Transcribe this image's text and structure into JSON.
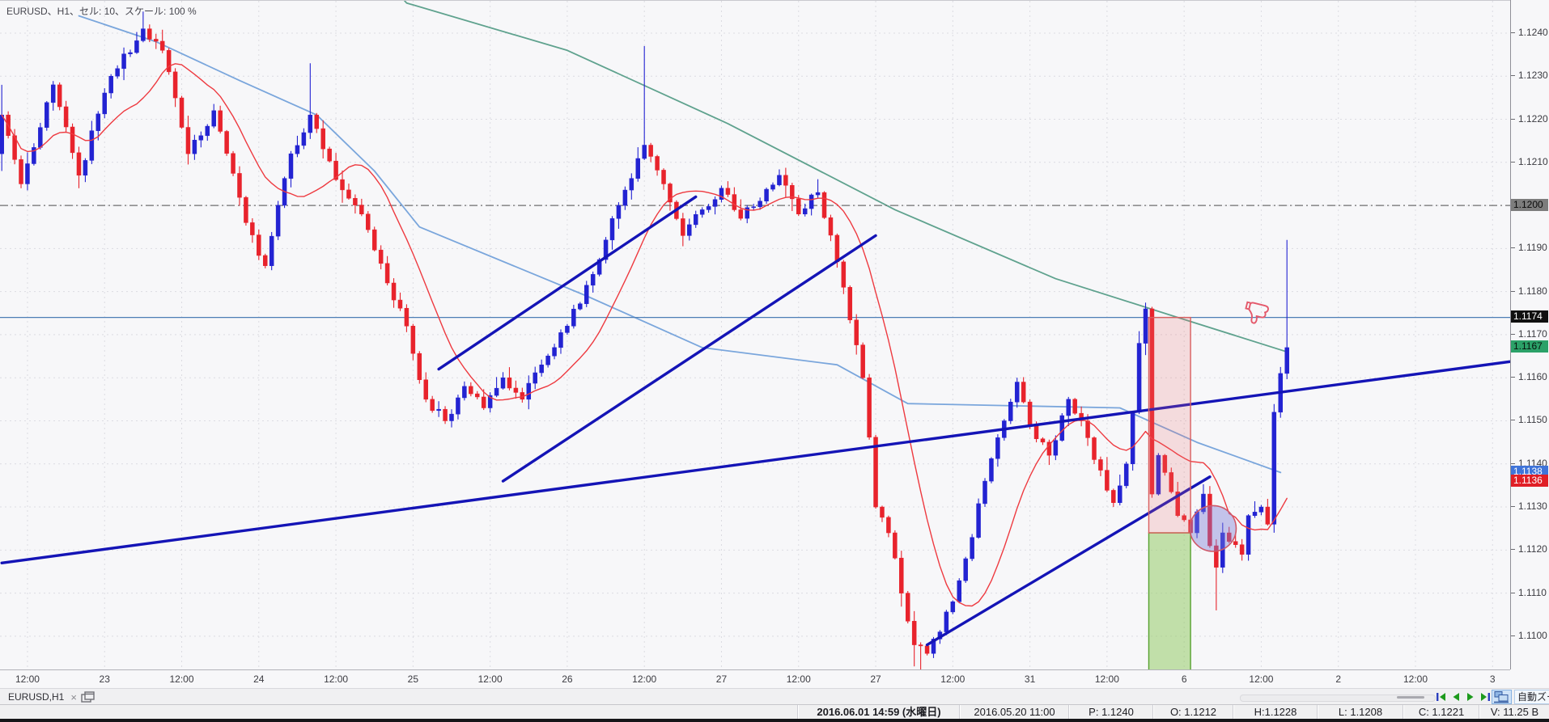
{
  "title_overlay": "EURUSD、H1、セル: 10、スケール: 100 %",
  "colors": {
    "bull": "#2323d2",
    "bear": "#e8232c",
    "ma_fast": "#ee3a40",
    "ma_mid": "#7aa6dc",
    "ma_slow": "#5fa28e",
    "trendline": "#1414b6",
    "hline": "#4d7eb5",
    "dashline": "#6f6f6f",
    "grid": "#dcdce2",
    "bg": "#f7f7f9",
    "axis_text": "#3b3b41",
    "rect_pink_fill": "rgba(235,110,110,0.20)",
    "rect_pink_stroke": "#d95f5f",
    "rect_green_fill": "rgba(140,200,90,0.50)",
    "rect_green_stroke": "#57a22f",
    "ellipse_fill": "rgba(125,125,215,0.42)",
    "ellipse_stroke": "#cf5868",
    "thumb": "#e4596b"
  },
  "price_axis": {
    "top": 1.12475,
    "bottom": 1.10921,
    "ticks": [
      "1.1240",
      "1.1230",
      "1.1220",
      "1.1210",
      "1.1200",
      "1.1190",
      "1.1180",
      "1.1170",
      "1.1160",
      "1.1150",
      "1.1140",
      "1.1130",
      "1.1120",
      "1.1110",
      "1.1100"
    ],
    "chips": [
      {
        "price": 1.12,
        "text": "1.1200",
        "bg": "#7d7d7d",
        "fg": "#0a0a0a"
      },
      {
        "price": 1.1174,
        "text": "1.1174",
        "bg": "#101010",
        "fg": "#ffffff"
      },
      {
        "price": 1.1167,
        "text": "1.1167",
        "bg": "#2ba168",
        "fg": "#06130c"
      },
      {
        "price": 1.1138,
        "text": "1.1138",
        "bg": "#3f74d9",
        "fg": "#ffffff"
      },
      {
        "price": 1.1136,
        "text": "1.1136",
        "bg": "#e01f26",
        "fg": "#ffffff"
      }
    ]
  },
  "time_axis": {
    "labels": [
      {
        "i": 4,
        "text": "12:00"
      },
      {
        "i": 16,
        "text": "23"
      },
      {
        "i": 28,
        "text": "12:00"
      },
      {
        "i": 40,
        "text": "24"
      },
      {
        "i": 52,
        "text": "12:00"
      },
      {
        "i": 64,
        "text": "25"
      },
      {
        "i": 76,
        "text": "12:00"
      },
      {
        "i": 88,
        "text": "26"
      },
      {
        "i": 100,
        "text": "12:00"
      },
      {
        "i": 112,
        "text": "27"
      },
      {
        "i": 124,
        "text": "12:00"
      },
      {
        "i": 136,
        "text": "27"
      },
      {
        "i": 148,
        "text": "12:00"
      },
      {
        "i": 160,
        "text": "31"
      },
      {
        "i": 172,
        "text": "12:00"
      },
      {
        "i": 184,
        "text": "6"
      },
      {
        "i": 196,
        "text": "12:00"
      },
      {
        "i": 208,
        "text": "2"
      },
      {
        "i": 220,
        "text": "12:00"
      },
      {
        "i": 232,
        "text": "3"
      }
    ]
  },
  "chart_data": {
    "type": "candlestick",
    "symbol": "EURUSD",
    "timeframe": "H1",
    "visible_slots": 235,
    "bar_spacing_px": 7.94,
    "price_top": 1.12475,
    "price_bottom": 1.10921,
    "first_bar_open": 1.1212,
    "last_close": 1.1167,
    "noise_seed": 9,
    "swing_closes": [
      [
        0,
        1.1221
      ],
      [
        3,
        1.1205
      ],
      [
        8,
        1.1228
      ],
      [
        12,
        1.1207
      ],
      [
        17,
        1.123
      ],
      [
        22,
        1.1241
      ],
      [
        25,
        1.1236
      ],
      [
        29,
        1.1212
      ],
      [
        33,
        1.1222
      ],
      [
        38,
        1.1196
      ],
      [
        41,
        1.1186
      ],
      [
        45,
        1.1212
      ],
      [
        48,
        1.1221
      ],
      [
        52,
        1.1206
      ],
      [
        56,
        1.1198
      ],
      [
        60,
        1.1182
      ],
      [
        63,
        1.1172
      ],
      [
        66,
        1.1155
      ],
      [
        69,
        1.115
      ],
      [
        72,
        1.1158
      ],
      [
        75,
        1.1153
      ],
      [
        78,
        1.116
      ],
      [
        81,
        1.1155
      ],
      [
        84,
        1.1163
      ],
      [
        88,
        1.1172
      ],
      [
        92,
        1.1184
      ],
      [
        96,
        1.12
      ],
      [
        100,
        1.1214
      ],
      [
        103,
        1.1205
      ],
      [
        106,
        1.1193
      ],
      [
        109,
        1.1199
      ],
      [
        112,
        1.1204
      ],
      [
        115,
        1.1197
      ],
      [
        118,
        1.1201
      ],
      [
        121,
        1.1207
      ],
      [
        124,
        1.1198
      ],
      [
        127,
        1.1203
      ],
      [
        131,
        1.1181
      ],
      [
        134,
        1.116
      ],
      [
        136,
        1.113
      ],
      [
        138,
        1.1124
      ],
      [
        140,
        1.111
      ],
      [
        142,
        1.1098
      ],
      [
        144,
        1.1096
      ],
      [
        146,
        1.1101
      ],
      [
        148,
        1.1108
      ],
      [
        150,
        1.1118
      ],
      [
        153,
        1.1136
      ],
      [
        156,
        1.115
      ],
      [
        158,
        1.1159
      ],
      [
        160,
        1.1149
      ],
      [
        163,
        1.1142
      ],
      [
        166,
        1.1155
      ],
      [
        168,
        1.115
      ],
      [
        170,
        1.1141
      ],
      [
        173,
        1.1131
      ],
      [
        175,
        1.114
      ],
      [
        176,
        1.1152
      ],
      [
        177,
        1.1168
      ],
      [
        178,
        1.1176
      ],
      [
        179,
        1.1133
      ],
      [
        180,
        1.1142
      ],
      [
        181,
        1.1138
      ],
      [
        183,
        1.1128
      ],
      [
        185,
        1.1124
      ],
      [
        187,
        1.1133
      ],
      [
        188,
        1.1121
      ],
      [
        189,
        1.1116
      ],
      [
        190,
        1.1124
      ],
      [
        191,
        1.1122
      ],
      [
        193,
        1.1119
      ],
      [
        194,
        1.1128
      ],
      [
        196,
        1.113
      ],
      [
        197,
        1.1126
      ],
      [
        198,
        1.1152
      ],
      [
        199,
        1.1161
      ],
      [
        200,
        1.1167
      ]
    ],
    "wick_overrides": {
      "0": {
        "h": 1.1228,
        "l": 1.1208
      },
      "22": {
        "h": 1.1245
      },
      "48": {
        "h": 1.1233
      },
      "100": {
        "h": 1.1237
      },
      "142": {
        "l": 1.1093
      },
      "143": {
        "l": 1.1092
      },
      "189": {
        "l": 1.1106
      },
      "200": {
        "h": 1.1192
      }
    },
    "ma_fast_period": 13,
    "ma_mid_points": [
      [
        12,
        1.1244
      ],
      [
        24,
        1.1238
      ],
      [
        37,
        1.1229
      ],
      [
        49,
        1.1221
      ],
      [
        58,
        1.1208
      ],
      [
        65,
        1.1195
      ],
      [
        91,
        1.1179
      ],
      [
        109,
        1.1167
      ],
      [
        130,
        1.1163
      ],
      [
        141,
        1.1154
      ],
      [
        174,
        1.1153
      ],
      [
        186,
        1.1145
      ],
      [
        199,
        1.1138
      ]
    ],
    "ma_slow_points": [
      [
        60,
        1.1252
      ],
      [
        63,
        1.1247
      ],
      [
        88,
        1.1236
      ],
      [
        113,
        1.1219
      ],
      [
        139,
        1.1199
      ],
      [
        164,
        1.1183
      ],
      [
        183,
        1.1174
      ],
      [
        200,
        1.1166
      ]
    ]
  },
  "objects": {
    "hline_price": 1.1174,
    "dash_hline_price": 1.12,
    "trendlines": [
      {
        "i1": 0,
        "p1": 1.1117,
        "i2": 241,
        "p2": 1.1165
      },
      {
        "i1": 68,
        "p1": 1.1162,
        "i2": 108,
        "p2": 1.1202
      },
      {
        "i1": 78,
        "p1": 1.1136,
        "i2": 136,
        "p2": 1.1193
      },
      {
        "i1": 144,
        "p1": 1.1098,
        "i2": 188,
        "p2": 1.1137
      }
    ],
    "rect_pink": {
      "i1": 178.5,
      "i2": 185,
      "p1": 1.1174,
      "p2": 1.1124
    },
    "rect_green": {
      "i1": 178.5,
      "i2": 185,
      "p1": 1.1124,
      "p2": 1.1092
    },
    "ellipse": {
      "i": 188.5,
      "p": 1.1125,
      "rx_bars": 3.6,
      "ry": 0.00053
    },
    "thumbs_down": {
      "i": 195.5,
      "p": 1.1175
    }
  },
  "tab_bar": {
    "tab_label": "EURUSD,H1",
    "close_glyph": "×",
    "auto_zoom_label": "自動ズーム"
  },
  "status_bar": {
    "cells": [
      {
        "text": "2016.06.01 14:59 (水曜日)"
      },
      {
        "text": "2016.05.20 11:00"
      },
      {
        "text": "P: 1.1240"
      },
      {
        "text": "O: 1.1212"
      },
      {
        "text": "H:1.1228"
      },
      {
        "text": "L: 1.1208"
      },
      {
        "text": "C: 1.1221"
      },
      {
        "text": "V: 11.25 B"
      }
    ]
  }
}
